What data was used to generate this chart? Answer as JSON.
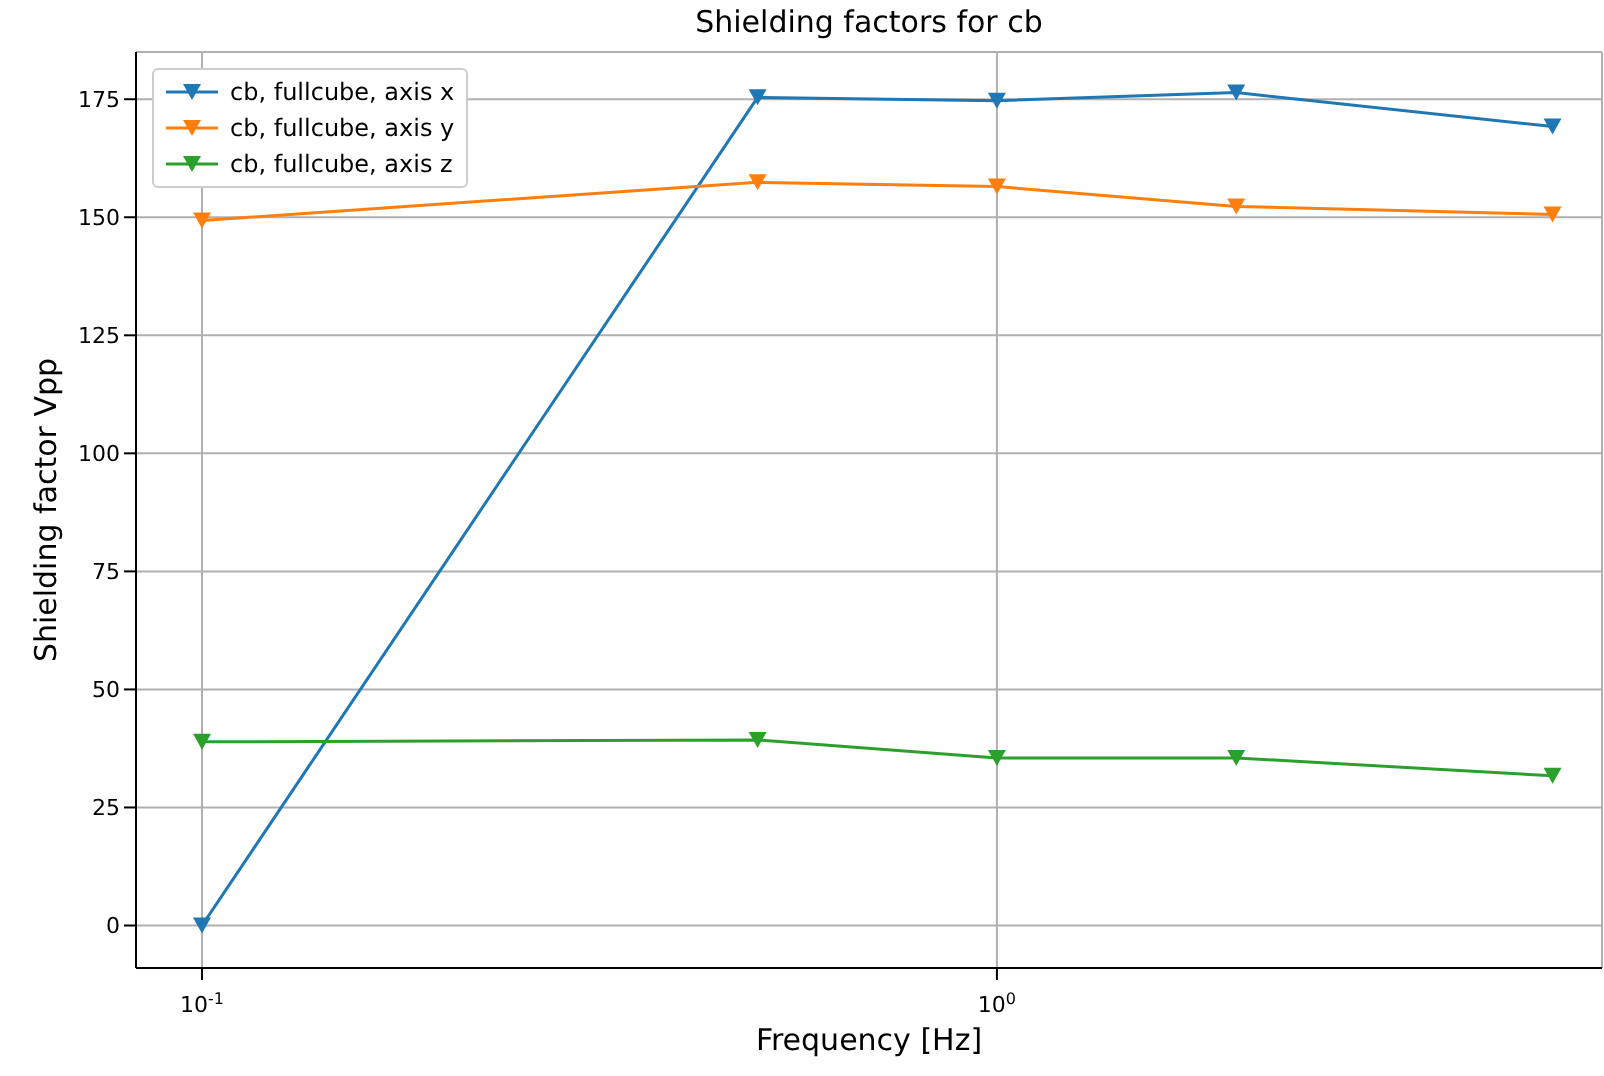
{
  "chart_data": {
    "type": "line",
    "title": "Shielding factors for cb",
    "xlabel": "Frequency [Hz]",
    "ylabel": "Shielding factor Vpp",
    "x": [
      0.1,
      0.5,
      1,
      2,
      5
    ],
    "series": [
      {
        "name": "cb, fullcube, axis x",
        "color": "#1f77b4",
        "values": [
          0,
          175.4,
          174.7,
          176.4,
          169.2
        ]
      },
      {
        "name": "cb, fullcube, axis y",
        "color": "#ff7f0e",
        "values": [
          149.3,
          157.4,
          156.5,
          152.3,
          150.6
        ]
      },
      {
        "name": "cb, fullcube, axis z",
        "color": "#2ca02c",
        "values": [
          38.9,
          39.3,
          35.5,
          35.5,
          31.7
        ]
      }
    ],
    "log": "x",
    "xlim": [
      0.0826,
      5.77
    ],
    "xticks": [
      {
        "value": 0.1,
        "label": "10$^{-1}$"
      },
      {
        "value": 1,
        "label": "10$^{0}$"
      }
    ],
    "ylim": [
      -9,
      185
    ],
    "yticks": [
      0,
      25,
      50,
      75,
      100,
      125,
      150,
      175
    ],
    "grid": true,
    "legend": "top left",
    "marker": "triangle",
    "line_style": "solid"
  }
}
